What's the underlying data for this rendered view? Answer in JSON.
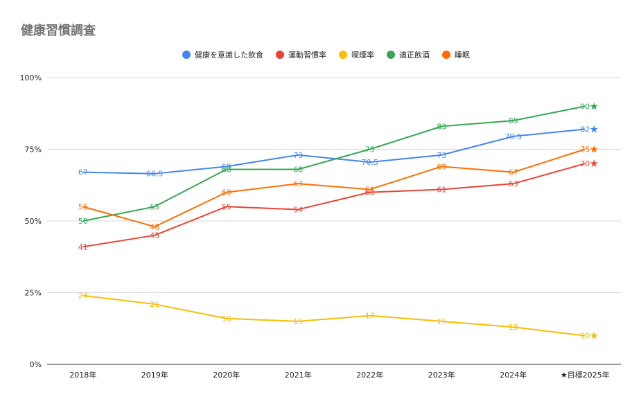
{
  "title": "健康習慣調査",
  "chart_data": {
    "type": "line",
    "title": "健康習慣調査",
    "xlabel": "",
    "ylabel": "",
    "categories": [
      "2018年",
      "2019年",
      "2020年",
      "2021年",
      "2022年",
      "2023年",
      "2024年",
      "★目標2025年"
    ],
    "y_ticks": [
      "0%",
      "25%",
      "50%",
      "75%",
      "100%"
    ],
    "ylim": [
      0,
      100
    ],
    "grid": true,
    "legend_position": "top",
    "series": [
      {
        "name": "健康を意識した飲食",
        "color": "#4285f4",
        "values": [
          67,
          66.5,
          69,
          73,
          70.5,
          73,
          79.5,
          82
        ],
        "labels": [
          "67",
          "66.5",
          "69",
          "73",
          "70.5",
          "73",
          "79.5",
          "82"
        ],
        "marker": "★"
      },
      {
        "name": "運動習慣率",
        "color": "#ea4335",
        "values": [
          41,
          45,
          55,
          54,
          60,
          61,
          63,
          70
        ],
        "labels": [
          "41",
          "45",
          "55",
          "54",
          "60",
          "61",
          "63",
          "70"
        ],
        "marker": "★"
      },
      {
        "name": "喫煙率",
        "color": "#fbbc04",
        "values": [
          24,
          21,
          16,
          15,
          17,
          15,
          13,
          10
        ],
        "labels": [
          "24",
          "21",
          "16",
          "15",
          "17",
          "15",
          "13",
          "10"
        ],
        "marker": "★"
      },
      {
        "name": "適正飲酒",
        "color": "#34a853",
        "values": [
          50,
          55,
          68,
          68,
          75,
          83,
          85,
          90
        ],
        "labels": [
          "50",
          "55",
          "68",
          "68",
          "75",
          "83",
          "85",
          "90"
        ],
        "marker": "★"
      },
      {
        "name": "睡眠",
        "color": "#ff6d01",
        "values": [
          55,
          48,
          60,
          63,
          61,
          69,
          67,
          75
        ],
        "labels": [
          "55",
          "48",
          "60",
          "63",
          "61",
          "69",
          "67",
          "75"
        ],
        "marker": "★"
      }
    ]
  }
}
